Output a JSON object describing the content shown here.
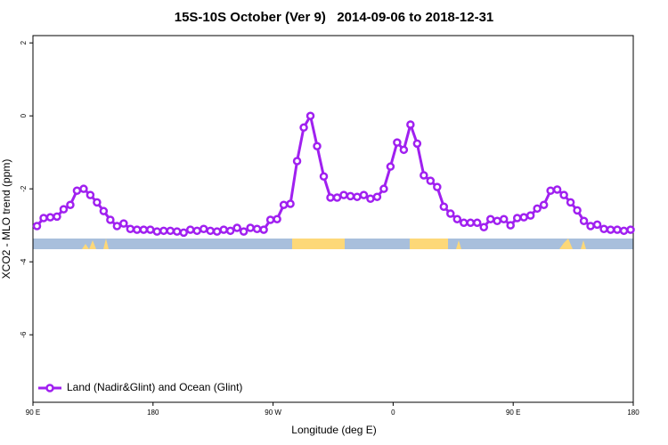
{
  "chart_data": {
    "type": "line",
    "title": "15S-10S October (Ver 9)   2014-09-06 to 2018-12-31",
    "xlabel": "Longitude (deg E)",
    "ylabel": "XCO2 - MLO trend (ppm)",
    "xlim": [
      90,
      540
    ],
    "ylim": [
      -7.85,
      2.2
    ],
    "xticks": [
      {
        "value": 90,
        "label": "90 E"
      },
      180,
      {
        "value": 270,
        "label": "90 W"
      },
      {
        "value": 360,
        "label": "0"
      },
      {
        "value": 450,
        "label": "90 E"
      },
      {
        "value": 540,
        "label": "180"
      }
    ],
    "yticks": [
      2,
      0,
      -2,
      -4,
      -6
    ],
    "legend": "bottom-left",
    "x": [
      93,
      98,
      103,
      108,
      113,
      118,
      123,
      128,
      133,
      138,
      143,
      148,
      153,
      158,
      163,
      168,
      173,
      178,
      183,
      188,
      193,
      198,
      203,
      208,
      213,
      218,
      223,
      228,
      233,
      238,
      243,
      248,
      253,
      258,
      263,
      268,
      273,
      278,
      283,
      288,
      293,
      298,
      303,
      308,
      313,
      318,
      323,
      328,
      333,
      338,
      343,
      348,
      353,
      358,
      363,
      368,
      373,
      378,
      383,
      388,
      393,
      398,
      403,
      408,
      413,
      418,
      423,
      428,
      433,
      438,
      443,
      448,
      453,
      458,
      463,
      468,
      473,
      478,
      483,
      488,
      493,
      498,
      503,
      508,
      513,
      518,
      523,
      528,
      533,
      538
    ],
    "series": [
      {
        "name": "Land (Nadir&Glint) and Ocean (Glint)",
        "color": "#a020f0",
        "values": [
          -3.02,
          -2.8,
          -2.78,
          -2.76,
          -2.56,
          -2.44,
          -2.05,
          -2.0,
          -2.17,
          -2.37,
          -2.61,
          -2.85,
          -3.02,
          -2.95,
          -3.1,
          -3.12,
          -3.12,
          -3.12,
          -3.17,
          -3.15,
          -3.15,
          -3.17,
          -3.2,
          -3.12,
          -3.15,
          -3.1,
          -3.15,
          -3.17,
          -3.12,
          -3.15,
          -3.07,
          -3.17,
          -3.07,
          -3.1,
          -3.12,
          -2.85,
          -2.83,
          -2.44,
          -2.41,
          -1.24,
          -0.32,
          0.0,
          -0.83,
          -1.66,
          -2.24,
          -2.24,
          -2.17,
          -2.2,
          -2.22,
          -2.17,
          -2.27,
          -2.22,
          -2.0,
          -1.39,
          -0.73,
          -0.93,
          -0.24,
          -0.76,
          -1.63,
          -1.78,
          -1.95,
          -2.49,
          -2.68,
          -2.83,
          -2.93,
          -2.93,
          -2.93,
          -3.05,
          -2.83,
          -2.88,
          -2.83,
          -3.0,
          -2.8,
          -2.78,
          -2.73,
          -2.54,
          -2.44,
          -2.05,
          -2.02,
          -2.17,
          -2.37,
          -2.59,
          -2.88,
          -3.02,
          -2.98,
          -3.1,
          -3.12,
          -3.12,
          -3.15,
          -3.12
        ]
      }
    ]
  }
}
